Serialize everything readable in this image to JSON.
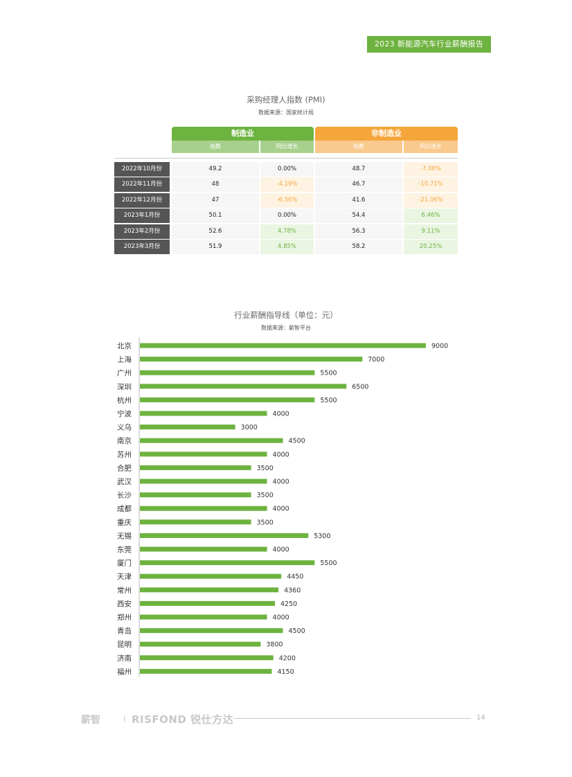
{
  "header": {
    "tag": "2023 新能源汽车行业薪酬报告"
  },
  "pmi": {
    "title": "采购经理人指数 (PMI)",
    "source": "数据来源：国家统计局",
    "groups": {
      "mfg": "制造业",
      "non_mfg": "非制造业"
    },
    "subheaders": {
      "index": "指数",
      "yoy": "同比增长"
    },
    "rows": [
      {
        "month": "2022年10月份",
        "mfg_index": "49.2",
        "mfg_yoy": "0.00%",
        "mfg_tone": "zero",
        "non_index": "48.7",
        "non_yoy": "-7.06%",
        "non_tone": "neg"
      },
      {
        "month": "2022年11月份",
        "mfg_index": "48",
        "mfg_yoy": "-4.19%",
        "mfg_tone": "neg",
        "non_index": "46.7",
        "non_yoy": "-10.71%",
        "non_tone": "neg"
      },
      {
        "month": "2022年12月份",
        "mfg_index": "47",
        "mfg_yoy": "-6.56%",
        "mfg_tone": "neg",
        "non_index": "41.6",
        "non_yoy": "-21.06%",
        "non_tone": "neg"
      },
      {
        "month": "2023年1月份",
        "mfg_index": "50.1",
        "mfg_yoy": "0.00%",
        "mfg_tone": "zero",
        "non_index": "54.4",
        "non_yoy": "6.46%",
        "non_tone": "pos"
      },
      {
        "month": "2023年2月份",
        "mfg_index": "52.6",
        "mfg_yoy": "4.78%",
        "mfg_tone": "pos",
        "non_index": "56.3",
        "non_yoy": "9.11%",
        "non_tone": "pos"
      },
      {
        "month": "2023年3月份",
        "mfg_index": "51.9",
        "mfg_yoy": "4.85%",
        "mfg_tone": "pos",
        "non_index": "58.2",
        "non_yoy": "20.25%",
        "non_tone": "pos"
      }
    ]
  },
  "chart_data": {
    "type": "bar",
    "orientation": "horizontal",
    "title": "行业薪酬指导线（单位：元）",
    "source": "数据来源：薪智平台",
    "categories": [
      "北京",
      "上海",
      "广州",
      "深圳",
      "杭州",
      "宁波",
      "义乌",
      "南京",
      "苏州",
      "合肥",
      "武汉",
      "长沙",
      "成都",
      "重庆",
      "无锡",
      "东莞",
      "厦门",
      "天津",
      "常州",
      "西安",
      "郑州",
      "青岛",
      "昆明",
      "济南",
      "福州"
    ],
    "values": [
      9000,
      7000,
      5500,
      6500,
      5500,
      4000,
      3000,
      4500,
      4000,
      3500,
      4000,
      3500,
      4000,
      3500,
      5300,
      4000,
      5500,
      4450,
      4360,
      4250,
      4000,
      4500,
      3800,
      4200,
      4150
    ],
    "xlim": [
      0,
      9000
    ],
    "bar_color": "#6db33f",
    "grid": false
  },
  "footer": {
    "logo1": "薪智",
    "separator": "|",
    "logo2": "RISFOND 锐仕方达",
    "page": "14"
  }
}
